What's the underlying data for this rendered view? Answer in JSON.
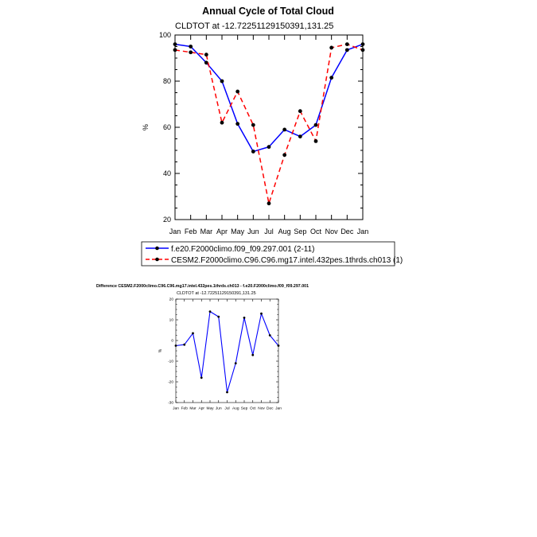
{
  "chart_data": [
    {
      "type": "line",
      "title": "Annual Cycle of Total Cloud",
      "subtitle": "CLDTOT at -12.72251129150391,131.25",
      "xlabel": "",
      "ylabel": "%",
      "ylim": [
        20,
        100
      ],
      "yticks": [
        20,
        40,
        60,
        80,
        100
      ],
      "categories": [
        "Jan",
        "Feb",
        "Mar",
        "Apr",
        "May",
        "Jun",
        "Jul",
        "Aug",
        "Sep",
        "Oct",
        "Nov",
        "Dec",
        "Jan"
      ],
      "series": [
        {
          "name": "f.e20.F2000climo.f09_f09.297.001 (2-11)",
          "color": "#0000ff",
          "dash": "solid",
          "values": [
            96,
            95,
            88,
            80,
            61.5,
            49.5,
            51.5,
            59,
            56,
            61,
            81.5,
            93.5,
            96
          ]
        },
        {
          "name": "CESM2.F2000climo.C96.C96.mg17.intel.432pes.1thrds.ch013 (1)",
          "color": "#ff0000",
          "dash": "dashed",
          "values": [
            93.5,
            92.5,
            91.5,
            62,
            75.5,
            61,
            27,
            48,
            67,
            54,
            94.5,
            96,
            93.5
          ]
        }
      ]
    },
    {
      "type": "line",
      "title": "Difference CESM2.F2000climo.C96.C96.mg17.intel.432pes.1thrds.ch013 - f.e20.F2000climo.f09_f09.297.001",
      "subtitle": "CLDTOT at -12.72251129150391,131.25",
      "xlabel": "",
      "ylabel": "%",
      "ylim": [
        -30,
        20
      ],
      "yticks": [
        -30,
        -20,
        -10,
        0,
        10,
        20
      ],
      "categories": [
        "Jan",
        "Feb",
        "Mar",
        "Apr",
        "May",
        "Jun",
        "Jul",
        "Aug",
        "Sep",
        "Oct",
        "Nov",
        "Dec",
        "Jan"
      ],
      "series": [
        {
          "name": "difference",
          "color": "#0000ff",
          "dash": "solid",
          "values": [
            -2.5,
            -2,
            3.5,
            -18,
            14,
            11.5,
            -25,
            -11,
            11,
            -7,
            13,
            2.5,
            -2.5
          ]
        }
      ]
    }
  ]
}
